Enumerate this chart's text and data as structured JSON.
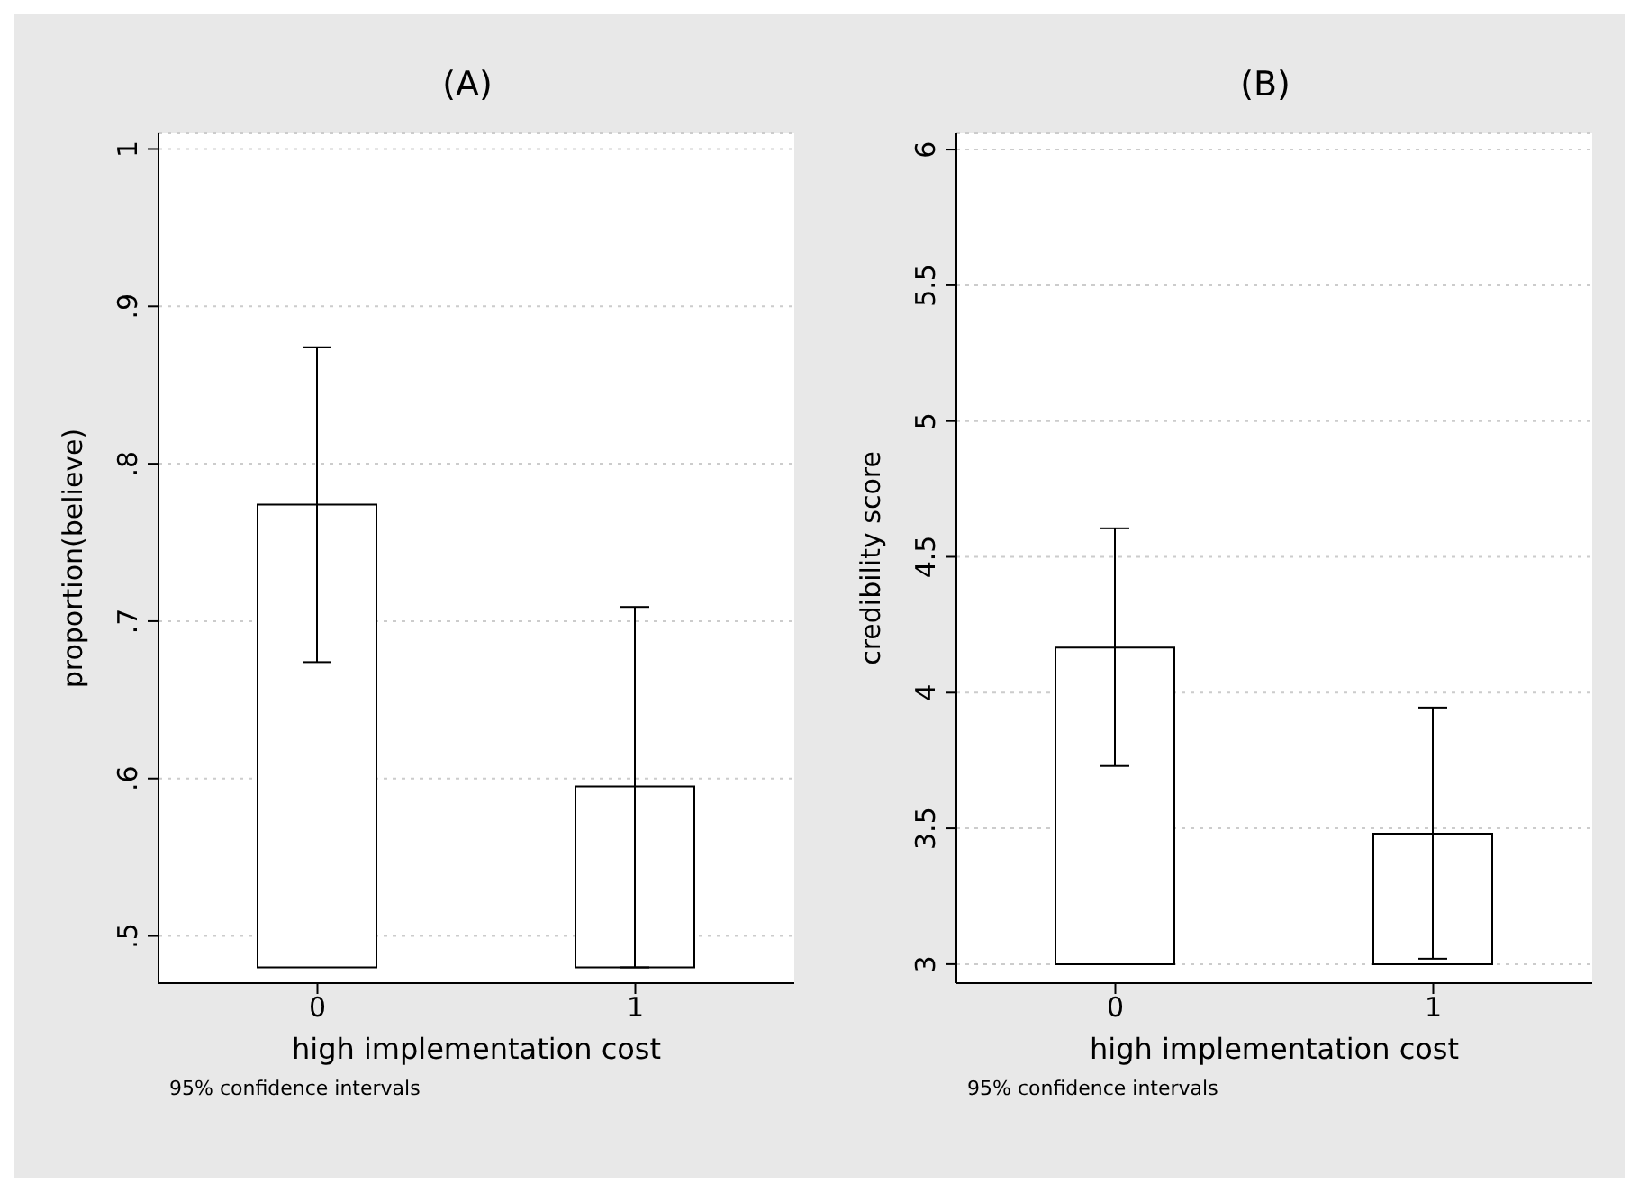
{
  "chart_data": [
    {
      "type": "bar",
      "title": "(A)",
      "xlabel": "high implementation cost",
      "ylabel": "proportion(believe)",
      "categories": [
        "0",
        "1"
      ],
      "base": [
        0.48,
        0.48
      ],
      "values": [
        0.294,
        0.115
      ],
      "errors": [
        [
          0.674,
          0.874
        ],
        [
          0.48,
          0.709
        ]
      ],
      "color": "#ffffff",
      "ylim": [
        0.47,
        1.01
      ],
      "yticks": [
        {
          "value": 0.5,
          "label": ".5"
        },
        {
          "value": 0.6,
          "label": ".6"
        },
        {
          "value": 0.7,
          "label": ".7"
        },
        {
          "value": 0.8,
          "label": ".8"
        },
        {
          "value": 0.9,
          "label": ".9"
        },
        1
      ],
      "grid": "y",
      "annotations": [
        "95% confidence intervals"
      ]
    },
    {
      "type": "bar",
      "title": "(B)",
      "xlabel": "high implementation cost",
      "ylabel": "credibility score",
      "categories": [
        "0",
        "1"
      ],
      "base": [
        3,
        3
      ],
      "values": [
        1.166,
        0.48
      ],
      "errors": [
        [
          3.73,
          4.605
        ],
        [
          3.02,
          3.945
        ]
      ],
      "color": "#ffffff",
      "ylim": [
        2.93,
        6.06
      ],
      "yticks": [
        3,
        3.5,
        4,
        4.5,
        5,
        5.5,
        6
      ],
      "grid": "y",
      "annotations": [
        "95% confidence intervals"
      ]
    }
  ]
}
